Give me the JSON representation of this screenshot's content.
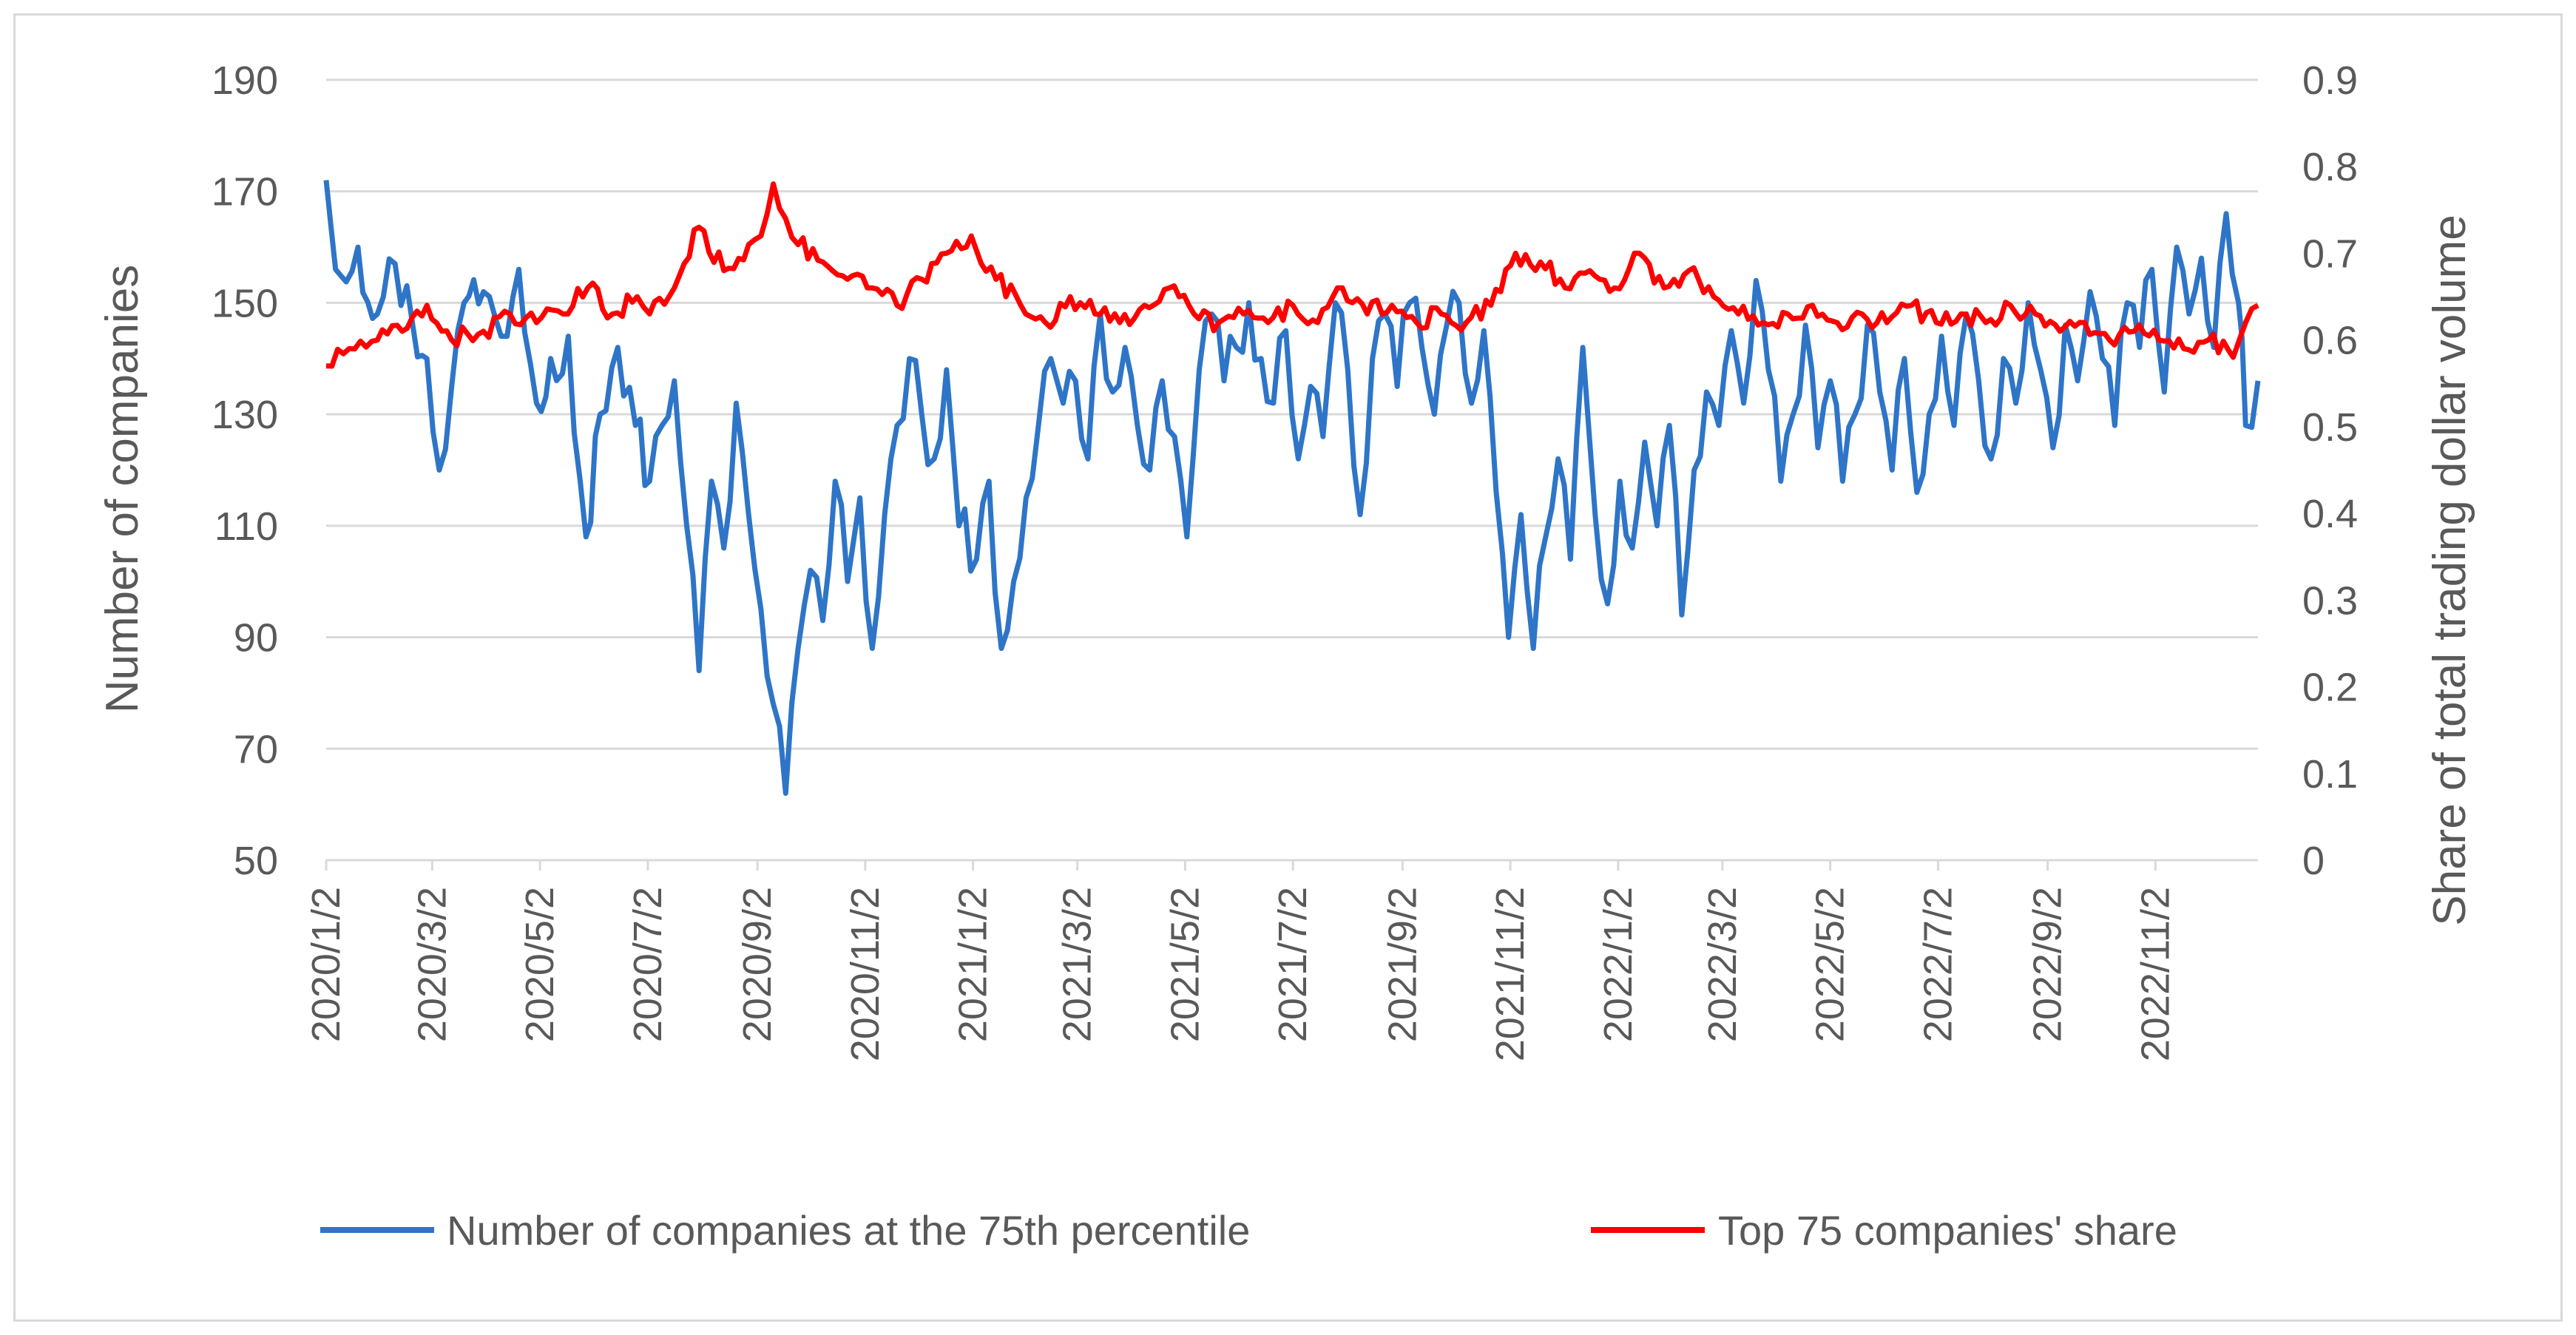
{
  "chart_data": {
    "type": "line",
    "title": "",
    "x_tick_labels": [
      "2020/1/2",
      "2020/3/2",
      "2020/5/2",
      "2020/7/2",
      "2020/9/2",
      "2020/11/2",
      "2021/1/2",
      "2021/3/2",
      "2021/5/2",
      "2021/7/2",
      "2021/9/2",
      "2021/11/2",
      "2022/1/2",
      "2022/3/2",
      "2022/5/2",
      "2022/7/2",
      "2022/9/2",
      "2022/11/2"
    ],
    "x_range": [
      "2020-01-02",
      "2022-12-30"
    ],
    "y_left": {
      "label": "Number of companies",
      "ticks": [
        50,
        70,
        90,
        110,
        130,
        150,
        170,
        190
      ],
      "range": [
        50,
        190
      ]
    },
    "y_right": {
      "label": "Share of total trading dollar volume",
      "ticks": [
        "0",
        "0.1",
        "0.2",
        "0.3",
        "0.4",
        "0.5",
        "0.6",
        "0.7",
        "0.8",
        "0.9"
      ],
      "range": [
        0,
        0.9
      ]
    },
    "gridlines": true,
    "legend_position": "bottom",
    "series": [
      {
        "name": "Number of companies at the 75th percentile",
        "axis": "left",
        "color": "#2e75c8",
        "points": [
          [
            "2020-01-02",
            172
          ],
          [
            "2020-01-10",
            155
          ],
          [
            "2020-01-20",
            160
          ],
          [
            "2020-01-31",
            148
          ],
          [
            "2020-02-10",
            157
          ],
          [
            "2020-02-20",
            146
          ],
          [
            "2020-02-28",
            140
          ],
          [
            "2020-03-06",
            120
          ],
          [
            "2020-03-13",
            135
          ],
          [
            "2020-03-20",
            150
          ],
          [
            "2020-03-31",
            152
          ],
          [
            "2020-04-10",
            144
          ],
          [
            "2020-04-20",
            156
          ],
          [
            "2020-04-30",
            132
          ],
          [
            "2020-05-08",
            140
          ],
          [
            "2020-05-18",
            144
          ],
          [
            "2020-05-28",
            108
          ],
          [
            "2020-06-05",
            130
          ],
          [
            "2020-06-15",
            142
          ],
          [
            "2020-06-25",
            128
          ],
          [
            "2020-07-03",
            118
          ],
          [
            "2020-07-10",
            128
          ],
          [
            "2020-07-17",
            136
          ],
          [
            "2020-07-24",
            110
          ],
          [
            "2020-07-31",
            84
          ],
          [
            "2020-08-07",
            118
          ],
          [
            "2020-08-14",
            106
          ],
          [
            "2020-08-21",
            132
          ],
          [
            "2020-08-28",
            112
          ],
          [
            "2020-09-04",
            95
          ],
          [
            "2020-09-11",
            78
          ],
          [
            "2020-09-18",
            62
          ],
          [
            "2020-09-25",
            88
          ],
          [
            "2020-10-02",
            102
          ],
          [
            "2020-10-09",
            93
          ],
          [
            "2020-10-16",
            118
          ],
          [
            "2020-10-23",
            100
          ],
          [
            "2020-10-30",
            115
          ],
          [
            "2020-11-06",
            88
          ],
          [
            "2020-11-13",
            112
          ],
          [
            "2020-11-20",
            128
          ],
          [
            "2020-11-27",
            140
          ],
          [
            "2020-12-04",
            130
          ],
          [
            "2020-12-11",
            122
          ],
          [
            "2020-12-18",
            138
          ],
          [
            "2020-12-25",
            110
          ],
          [
            "2021-01-04",
            104
          ],
          [
            "2021-01-11",
            118
          ],
          [
            "2021-01-18",
            88
          ],
          [
            "2021-01-25",
            100
          ],
          [
            "2021-02-01",
            115
          ],
          [
            "2021-02-08",
            128
          ],
          [
            "2021-02-15",
            140
          ],
          [
            "2021-02-22",
            132
          ],
          [
            "2021-03-01",
            136
          ],
          [
            "2021-03-08",
            122
          ],
          [
            "2021-03-15",
            148
          ],
          [
            "2021-03-22",
            134
          ],
          [
            "2021-03-29",
            142
          ],
          [
            "2021-04-05",
            128
          ],
          [
            "2021-04-12",
            120
          ],
          [
            "2021-04-19",
            136
          ],
          [
            "2021-04-26",
            126
          ],
          [
            "2021-05-03",
            108
          ],
          [
            "2021-05-10",
            138
          ],
          [
            "2021-05-17",
            148
          ],
          [
            "2021-05-24",
            136
          ],
          [
            "2021-05-31",
            142
          ],
          [
            "2021-06-07",
            150
          ],
          [
            "2021-06-14",
            140
          ],
          [
            "2021-06-21",
            132
          ],
          [
            "2021-06-28",
            145
          ],
          [
            "2021-07-05",
            122
          ],
          [
            "2021-07-12",
            135
          ],
          [
            "2021-07-19",
            126
          ],
          [
            "2021-07-26",
            150
          ],
          [
            "2021-08-02",
            138
          ],
          [
            "2021-08-09",
            112
          ],
          [
            "2021-08-16",
            140
          ],
          [
            "2021-08-23",
            148
          ],
          [
            "2021-08-30",
            135
          ],
          [
            "2021-09-06",
            150
          ],
          [
            "2021-09-13",
            142
          ],
          [
            "2021-09-20",
            130
          ],
          [
            "2021-09-27",
            146
          ],
          [
            "2021-10-04",
            150
          ],
          [
            "2021-10-11",
            132
          ],
          [
            "2021-10-18",
            145
          ],
          [
            "2021-10-25",
            116
          ],
          [
            "2021-11-01",
            90
          ],
          [
            "2021-11-08",
            112
          ],
          [
            "2021-11-15",
            88
          ],
          [
            "2021-11-22",
            108
          ],
          [
            "2021-11-29",
            122
          ],
          [
            "2021-12-06",
            104
          ],
          [
            "2021-12-13",
            142
          ],
          [
            "2021-12-20",
            112
          ],
          [
            "2021-12-27",
            96
          ],
          [
            "2022-01-03",
            118
          ],
          [
            "2022-01-10",
            106
          ],
          [
            "2022-01-17",
            125
          ],
          [
            "2022-01-24",
            110
          ],
          [
            "2022-01-31",
            128
          ],
          [
            "2022-02-07",
            94
          ],
          [
            "2022-02-14",
            120
          ],
          [
            "2022-02-21",
            134
          ],
          [
            "2022-02-28",
            128
          ],
          [
            "2022-03-07",
            145
          ],
          [
            "2022-03-14",
            132
          ],
          [
            "2022-03-21",
            154
          ],
          [
            "2022-03-28",
            138
          ],
          [
            "2022-04-04",
            118
          ],
          [
            "2022-04-11",
            130
          ],
          [
            "2022-04-18",
            146
          ],
          [
            "2022-04-25",
            124
          ],
          [
            "2022-05-02",
            136
          ],
          [
            "2022-05-09",
            118
          ],
          [
            "2022-05-16",
            130
          ],
          [
            "2022-05-23",
            146
          ],
          [
            "2022-05-30",
            134
          ],
          [
            "2022-06-06",
            120
          ],
          [
            "2022-06-13",
            140
          ],
          [
            "2022-06-20",
            116
          ],
          [
            "2022-06-27",
            130
          ],
          [
            "2022-07-04",
            144
          ],
          [
            "2022-07-11",
            128
          ],
          [
            "2022-07-18",
            148
          ],
          [
            "2022-07-25",
            136
          ],
          [
            "2022-08-01",
            122
          ],
          [
            "2022-08-08",
            140
          ],
          [
            "2022-08-15",
            132
          ],
          [
            "2022-08-22",
            150
          ],
          [
            "2022-08-29",
            138
          ],
          [
            "2022-09-05",
            124
          ],
          [
            "2022-09-12",
            146
          ],
          [
            "2022-09-19",
            136
          ],
          [
            "2022-09-26",
            152
          ],
          [
            "2022-10-03",
            140
          ],
          [
            "2022-10-10",
            128
          ],
          [
            "2022-10-17",
            150
          ],
          [
            "2022-10-24",
            142
          ],
          [
            "2022-10-31",
            156
          ],
          [
            "2022-11-07",
            134
          ],
          [
            "2022-11-14",
            160
          ],
          [
            "2022-11-21",
            148
          ],
          [
            "2022-11-28",
            158
          ],
          [
            "2022-12-05",
            142
          ],
          [
            "2022-12-12",
            166
          ],
          [
            "2022-12-19",
            150
          ],
          [
            "2022-12-23",
            128
          ],
          [
            "2022-12-30",
            136
          ]
        ]
      },
      {
        "name": "Top 75 companies' share",
        "axis": "right",
        "color": "#ff0000",
        "points": [
          [
            "2020-01-02",
            0.57
          ],
          [
            "2020-01-15",
            0.59
          ],
          [
            "2020-01-31",
            0.6
          ],
          [
            "2020-02-14",
            0.61
          ],
          [
            "2020-02-28",
            0.64
          ],
          [
            "2020-03-13",
            0.6
          ],
          [
            "2020-03-31",
            0.61
          ],
          [
            "2020-04-15",
            0.63
          ],
          [
            "2020-04-30",
            0.62
          ],
          [
            "2020-05-15",
            0.63
          ],
          [
            "2020-05-29",
            0.66
          ],
          [
            "2020-06-12",
            0.63
          ],
          [
            "2020-06-26",
            0.65
          ],
          [
            "2020-07-03",
            0.63
          ],
          [
            "2020-07-17",
            0.66
          ],
          [
            "2020-07-31",
            0.73
          ],
          [
            "2020-08-14",
            0.68
          ],
          [
            "2020-08-28",
            0.71
          ],
          [
            "2020-09-04",
            0.72
          ],
          [
            "2020-09-11",
            0.78
          ],
          [
            "2020-09-18",
            0.74
          ],
          [
            "2020-09-25",
            0.71
          ],
          [
            "2020-10-09",
            0.69
          ],
          [
            "2020-10-23",
            0.67
          ],
          [
            "2020-11-06",
            0.66
          ],
          [
            "2020-11-20",
            0.64
          ],
          [
            "2020-12-04",
            0.67
          ],
          [
            "2020-12-18",
            0.7
          ],
          [
            "2021-01-01",
            0.72
          ],
          [
            "2021-01-15",
            0.67
          ],
          [
            "2021-01-29",
            0.64
          ],
          [
            "2021-02-12",
            0.62
          ],
          [
            "2021-02-26",
            0.65
          ],
          [
            "2021-03-12",
            0.63
          ],
          [
            "2021-03-26",
            0.62
          ],
          [
            "2021-04-09",
            0.64
          ],
          [
            "2021-04-23",
            0.66
          ],
          [
            "2021-05-07",
            0.63
          ],
          [
            "2021-05-21",
            0.62
          ],
          [
            "2021-06-04",
            0.63
          ],
          [
            "2021-06-18",
            0.62
          ],
          [
            "2021-07-02",
            0.64
          ],
          [
            "2021-07-16",
            0.62
          ],
          [
            "2021-07-30",
            0.66
          ],
          [
            "2021-08-13",
            0.63
          ],
          [
            "2021-08-27",
            0.64
          ],
          [
            "2021-09-10",
            0.62
          ],
          [
            "2021-09-24",
            0.63
          ],
          [
            "2021-10-08",
            0.62
          ],
          [
            "2021-10-22",
            0.64
          ],
          [
            "2021-11-05",
            0.7
          ],
          [
            "2021-11-19",
            0.69
          ],
          [
            "2021-12-03",
            0.66
          ],
          [
            "2021-12-17",
            0.68
          ],
          [
            "2021-12-31",
            0.66
          ],
          [
            "2022-01-14",
            0.7
          ],
          [
            "2022-01-28",
            0.66
          ],
          [
            "2022-02-11",
            0.68
          ],
          [
            "2022-02-25",
            0.65
          ],
          [
            "2022-03-11",
            0.63
          ],
          [
            "2022-03-25",
            0.62
          ],
          [
            "2022-04-08",
            0.63
          ],
          [
            "2022-04-22",
            0.64
          ],
          [
            "2022-05-06",
            0.62
          ],
          [
            "2022-05-20",
            0.63
          ],
          [
            "2022-06-03",
            0.62
          ],
          [
            "2022-06-17",
            0.64
          ],
          [
            "2022-07-01",
            0.62
          ],
          [
            "2022-07-15",
            0.63
          ],
          [
            "2022-07-29",
            0.62
          ],
          [
            "2022-08-12",
            0.64
          ],
          [
            "2022-08-26",
            0.63
          ],
          [
            "2022-09-09",
            0.61
          ],
          [
            "2022-09-23",
            0.62
          ],
          [
            "2022-10-07",
            0.6
          ],
          [
            "2022-10-21",
            0.61
          ],
          [
            "2022-11-04",
            0.6
          ],
          [
            "2022-11-18",
            0.59
          ],
          [
            "2022-12-02",
            0.6
          ],
          [
            "2022-12-16",
            0.58
          ],
          [
            "2022-12-23",
            0.62
          ],
          [
            "2022-12-30",
            0.64
          ]
        ]
      }
    ]
  }
}
